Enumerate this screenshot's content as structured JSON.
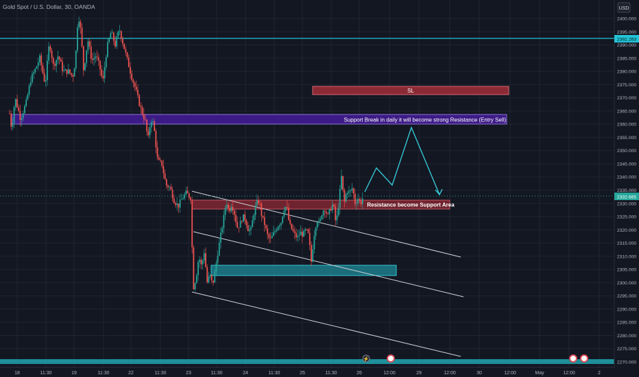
{
  "header": {
    "symbol_title": "Gold Spot / U.S. Dollar, 30, OANDA",
    "currency": "USD"
  },
  "colors": {
    "bg": "#131722",
    "grid": "#1f2430",
    "up": "#26a69a",
    "down": "#ef5350",
    "axis_text": "#b2b5be",
    "hline": "#22c3d6",
    "price_tag": "#26a69a"
  },
  "price_axis": {
    "ticks": [
      "2400.000",
      "2395.000",
      "2390.000",
      "2385.000",
      "2380.000",
      "2375.000",
      "2370.000",
      "2365.000",
      "2360.000",
      "2355.000",
      "2350.000",
      "2345.000",
      "2340.000",
      "2335.000",
      "2330.000",
      "2325.000",
      "2320.000",
      "2315.000",
      "2310.000",
      "2305.000",
      "2300.000",
      "2295.000",
      "2290.000",
      "2285.000",
      "2280.000",
      "2275.000",
      "2270.000"
    ]
  },
  "time_axis": {
    "labels": [
      "18",
      "11:30",
      "19",
      "11:30",
      "22",
      "11:30",
      "23",
      "11:30",
      "24",
      "11:30",
      "25",
      "11:30",
      "26",
      "12:00",
      "29",
      "12:00",
      "30",
      "12:00",
      "May",
      "12:00",
      "2"
    ]
  },
  "hline": {
    "price_tag": "2392.263"
  },
  "last_price": {
    "price_tag": "2332.665"
  },
  "annotations": {
    "sl_label": "SL",
    "entry_label": "Support Break in daily it will become strong Resistance (Entry Sell)",
    "support_label": "Resistance become Support Area"
  },
  "chart_data": {
    "type": "candlestick",
    "title": "Gold Spot / U.S. Dollar, 30, OANDA",
    "ylim": [
      2268,
      2404
    ],
    "y_unit": "USD",
    "x_range_days": [
      "18",
      "26"
    ],
    "horizontal_line": 2392.263,
    "last_price": 2332.665,
    "path_points": [
      [
        2397.0,
        2392.5,
        2399.5,
        2392.0
      ],
      [
        2392.0,
        2395.5,
        2397.5,
        2390.0
      ],
      [
        2395.5,
        2391.5,
        2396.0,
        2389.0
      ],
      [
        2391.5,
        2392.0,
        2394.0,
        2389.5
      ],
      [
        2392.0,
        2389.0,
        2393.5,
        2387.5
      ],
      [
        2389.0,
        2394.0,
        2395.0,
        2388.0
      ],
      [
        2394.0,
        2389.5,
        2395.5,
        2388.5
      ],
      [
        2389.5,
        2383.0,
        2391.0,
        2381.5
      ],
      [
        2383.0,
        2386.0,
        2387.5,
        2381.5
      ],
      [
        2386.0,
        2377.0,
        2387.0,
        2375.5
      ],
      [
        2377.0,
        2372.0,
        2378.5,
        2370.5
      ],
      [
        2372.0,
        2366.5,
        2373.5,
        2364.0
      ],
      [
        2366.5,
        2360.5,
        2368.0,
        2359.0
      ],
      [
        2360.5,
        2364.5,
        2367.0,
        2358.0
      ],
      [
        2364.5,
        2356.0,
        2365.5,
        2353.5
      ],
      [
        2356.0,
        2351.0,
        2358.0,
        2349.5
      ],
      [
        2351.0,
        2344.5,
        2352.0,
        2342.5
      ],
      [
        2344.5,
        2339.0,
        2346.0,
        2337.5
      ],
      [
        2339.0,
        2335.0,
        2340.5,
        2333.0
      ],
      [
        2335.0,
        2332.0,
        2337.0,
        2330.0
      ],
      [
        2332.0,
        2329.0,
        2334.0,
        2327.5
      ],
      [
        2329.0,
        2333.5,
        2335.0,
        2328.0
      ],
      [
        2333.5,
        2331.0,
        2335.5,
        2329.0
      ],
      [
        2331.0,
        2334.0,
        2336.0,
        2330.0
      ],
      [
        2334.0,
        2298.0,
        2334.5,
        2296.5
      ],
      [
        2298.0,
        2310.0,
        2312.0,
        2297.0
      ],
      [
        2310.0,
        2301.0,
        2312.5,
        2299.0
      ],
      [
        2301.0,
        2311.0,
        2313.5,
        2299.5
      ],
      [
        2311.0,
        2304.0,
        2312.5,
        2294.0
      ],
      [
        2304.0,
        2316.0,
        2318.0,
        2302.5
      ],
      [
        2316.0,
        2326.0,
        2328.0,
        2315.0
      ],
      [
        2326.0,
        2322.0,
        2329.0,
        2320.5
      ],
      [
        2322.0,
        2330.0,
        2332.0,
        2320.5
      ],
      [
        2330.0,
        2326.0,
        2332.5,
        2324.0
      ],
      [
        2326.0,
        2322.0,
        2328.0,
        2320.5
      ],
      [
        2322.0,
        2327.0,
        2329.5,
        2320.5
      ],
      [
        2327.0,
        2321.0,
        2328.0,
        2319.5
      ],
      [
        2321.0,
        2323.0,
        2324.5,
        2318.5
      ],
      [
        2323.0,
        2329.0,
        2331.0,
        2321.0
      ],
      [
        2329.0,
        2324.0,
        2330.5,
        2322.0
      ],
      [
        2324.0,
        2320.0,
        2326.0,
        2318.5
      ],
      [
        2320.0,
        2316.0,
        2322.0,
        2314.5
      ],
      [
        2316.0,
        2320.0,
        2322.0,
        2314.5
      ],
      [
        2320.0,
        2325.0,
        2327.0,
        2319.0
      ],
      [
        2325.0,
        2318.0,
        2326.0,
        2316.0
      ],
      [
        2318.0,
        2327.0,
        2333.5,
        2316.5
      ],
      [
        2327.0,
        2323.0,
        2329.5,
        2321.0
      ],
      [
        2323.0,
        2319.0,
        2325.0,
        2317.5
      ],
      [
        2319.0,
        2316.0,
        2321.0,
        2314.5
      ],
      [
        2316.0,
        2319.0,
        2321.0,
        2314.5
      ],
      [
        2319.0,
        2322.0,
        2324.0,
        2317.5
      ],
      [
        2322.0,
        2317.0,
        2323.5,
        2315.5
      ],
      [
        2317.0,
        2321.0,
        2323.5,
        2315.5
      ],
      [
        2321.0,
        2325.0,
        2327.0,
        2319.5
      ],
      [
        2325.0,
        2319.0,
        2326.5,
        2317.0
      ],
      [
        2319.0,
        2315.0,
        2321.0,
        2307.5
      ],
      [
        2315.0,
        2323.0,
        2325.0,
        2313.5
      ],
      [
        2323.0,
        2327.0,
        2329.0,
        2321.5
      ],
      [
        2327.0,
        2325.0,
        2329.0,
        2323.0
      ],
      [
        2325.0,
        2332.0,
        2334.0,
        2323.5
      ],
      [
        2332.0,
        2329.0,
        2335.0,
        2318.0
      ],
      [
        2329.0,
        2331.0,
        2345.0,
        2327.0
      ],
      [
        2331.0,
        2333.0,
        2338.0,
        2329.0
      ],
      [
        2333.0,
        2328.5,
        2334.5,
        2326.5
      ],
      [
        2328.5,
        2334.0,
        2336.0,
        2327.0
      ],
      [
        2334.0,
        2330.0,
        2336.0,
        2328.0
      ],
      [
        2330.0,
        2331.0,
        2333.0,
        2328.5
      ],
      [
        2331.0,
        2328.0,
        2332.5,
        2326.0
      ],
      [
        2328.0,
        2332.7,
        2334.0,
        2327.0
      ]
    ],
    "annotation_zones": [
      {
        "label": "SL",
        "price_low": 2372.5,
        "price_high": 2375.5
      },
      {
        "label": "Support Break in daily it will become strong Resistance (Entry Sell)",
        "price_low": 2360.0,
        "price_high": 2363.5
      },
      {
        "label": "Resistance become Support Area",
        "price_low": 2328.5,
        "price_high": 2331.5
      },
      {
        "label": "",
        "price_low": 2303.0,
        "price_high": 2307.0
      }
    ],
    "projection_path": [
      2333.5,
      2343.5,
      2337.0,
      2358.5,
      2334.0
    ]
  }
}
